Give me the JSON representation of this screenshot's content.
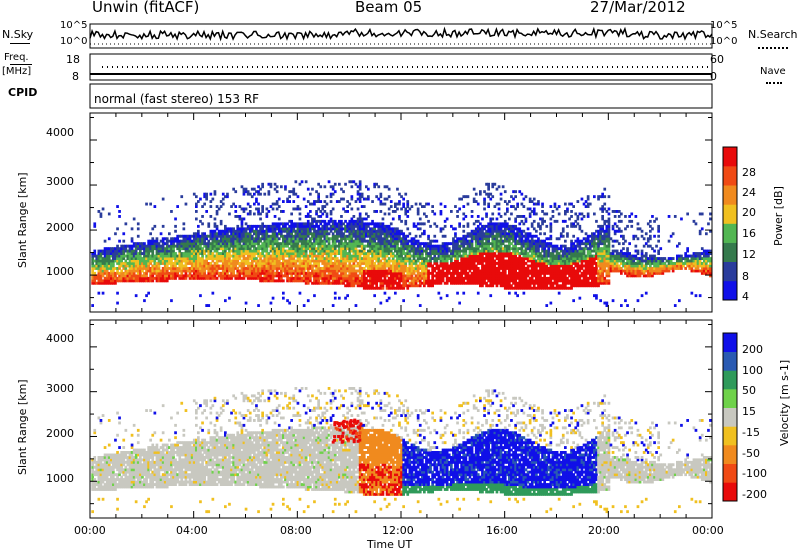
{
  "header": {
    "station": "Unwin (fitACF)",
    "beam": "Beam 05",
    "date": "27/Mar/2012"
  },
  "noise_panel": {
    "left_label": "N.Sky",
    "right_label": "N.Search",
    "y_ticks_left": [
      "10^5",
      "10^0"
    ],
    "y_ticks_right": [
      "10^5",
      "10^0"
    ]
  },
  "freq_panel": {
    "left_label_1": "Freq.",
    "left_label_2": "[MHz]",
    "right_label": "Nave",
    "y_ticks_left": [
      "18",
      "8"
    ],
    "y_ticks_right": [
      "60",
      "0"
    ]
  },
  "cpid_panel": {
    "label": "CPID",
    "mode_text": "normal (fast stereo) 153 RF"
  },
  "x_axis": {
    "label": "Time UT",
    "ticks": [
      "00:00",
      "04:00",
      "08:00",
      "12:00",
      "16:00",
      "20:00",
      "00:00"
    ]
  },
  "colors": {
    "power_scale": [
      "#1010e8",
      "#2a3c9c",
      "#357a4c",
      "#52b652",
      "#f0c020",
      "#f08a1e",
      "#f04a14",
      "#e80a0a"
    ],
    "velocity_scale": [
      "#e80a0a",
      "#f04a14",
      "#f08a1e",
      "#f0c020",
      "#c8c8c0",
      "#6fd24a",
      "#2f9a5a",
      "#2a5ab2",
      "#1010e8"
    ]
  },
  "chart_data": [
    {
      "type": "heatmap",
      "title": "Power",
      "ylabel": "Slant Range [km]",
      "xlabel": "Time UT",
      "xlim": [
        "00:00",
        "24:00"
      ],
      "ylim": [
        180,
        4600
      ],
      "y_ticks": [
        "1000",
        "2000",
        "3000",
        "4000"
      ],
      "colorbar_label": "Power [dB]",
      "colorbar_ticks": [
        "4",
        "8",
        "12",
        "16",
        "20",
        "24",
        "28"
      ],
      "colorbar_range": [
        0,
        32
      ]
    },
    {
      "type": "heatmap",
      "title": "Velocity",
      "ylabel": "Slant Range [km]",
      "xlabel": "Time UT",
      "xlim": [
        "00:00",
        "24:00"
      ],
      "ylim": [
        180,
        4600
      ],
      "y_ticks": [
        "1000",
        "2000",
        "3000",
        "4000"
      ],
      "colorbar_label": "Velocity [m s-1]",
      "colorbar_ticks": [
        "200",
        "100",
        "50",
        "15",
        "-15",
        "-50",
        "-100",
        "-200"
      ]
    }
  ]
}
